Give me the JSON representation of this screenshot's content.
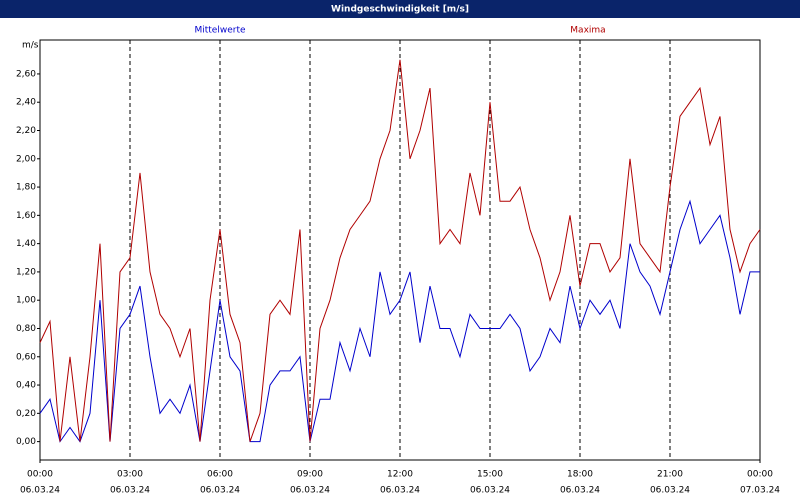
{
  "chart_data": {
    "type": "line",
    "title": "Windgeschwindigkeit [m/s]",
    "y_unit": "m/s",
    "x": [
      "06.03.24 00:00",
      "06.03.24 00:20",
      "06.03.24 00:40",
      "06.03.24 01:00",
      "06.03.24 01:20",
      "06.03.24 01:40",
      "06.03.24 02:00",
      "06.03.24 02:20",
      "06.03.24 02:40",
      "06.03.24 03:00",
      "06.03.24 03:20",
      "06.03.24 03:40",
      "06.03.24 04:00",
      "06.03.24 04:20",
      "06.03.24 04:40",
      "06.03.24 05:00",
      "06.03.24 05:20",
      "06.03.24 05:40",
      "06.03.24 06:00",
      "06.03.24 06:20",
      "06.03.24 06:40",
      "06.03.24 07:00",
      "06.03.24 07:20",
      "06.03.24 07:40",
      "06.03.24 08:00",
      "06.03.24 08:20",
      "06.03.24 08:40",
      "06.03.24 09:00",
      "06.03.24 09:20",
      "06.03.24 09:40",
      "06.03.24 10:00",
      "06.03.24 10:20",
      "06.03.24 10:40",
      "06.03.24 11:00",
      "06.03.24 11:20",
      "06.03.24 11:40",
      "06.03.24 12:00",
      "06.03.24 12:20",
      "06.03.24 12:40",
      "06.03.24 13:00",
      "06.03.24 13:20",
      "06.03.24 13:40",
      "06.03.24 14:00",
      "06.03.24 14:20",
      "06.03.24 14:40",
      "06.03.24 15:00",
      "06.03.24 15:20",
      "06.03.24 15:40",
      "06.03.24 16:00",
      "06.03.24 16:20",
      "06.03.24 16:40",
      "06.03.24 17:00",
      "06.03.24 17:20",
      "06.03.24 17:40",
      "06.03.24 18:00",
      "06.03.24 18:20",
      "06.03.24 18:40",
      "06.03.24 19:00",
      "06.03.24 19:20",
      "06.03.24 19:40",
      "06.03.24 20:00",
      "06.03.24 20:20",
      "06.03.24 20:40",
      "06.03.24 21:00",
      "06.03.24 21:20",
      "06.03.24 21:40",
      "06.03.24 22:00",
      "06.03.24 22:20",
      "06.03.24 22:40",
      "06.03.24 23:00",
      "06.03.24 23:20",
      "06.03.24 23:40",
      "07.03.24 00:00"
    ],
    "series": [
      {
        "name": "Mittelwerte",
        "color": "#0000cc",
        "values": [
          0.2,
          0.3,
          0.0,
          0.1,
          0.0,
          0.2,
          1.0,
          0.0,
          0.8,
          0.9,
          1.1,
          0.6,
          0.2,
          0.3,
          0.2,
          0.4,
          0.0,
          0.5,
          1.0,
          0.6,
          0.5,
          0.0,
          0.0,
          0.4,
          0.5,
          0.5,
          0.6,
          0.0,
          0.3,
          0.3,
          0.7,
          0.5,
          0.8,
          0.6,
          1.2,
          0.9,
          1.0,
          1.2,
          0.7,
          1.1,
          0.8,
          0.8,
          0.6,
          0.9,
          0.8,
          0.8,
          0.8,
          0.9,
          0.8,
          0.5,
          0.6,
          0.8,
          0.7,
          1.1,
          0.8,
          1.0,
          0.9,
          1.0,
          0.8,
          1.4,
          1.2,
          1.1,
          0.9,
          1.2,
          1.5,
          1.7,
          1.4,
          1.5,
          1.6,
          1.3,
          0.9,
          1.2,
          1.2
        ]
      },
      {
        "name": "Maxima",
        "color": "#b00000",
        "values": [
          0.7,
          0.85,
          0.0,
          0.6,
          0.0,
          0.6,
          1.4,
          0.0,
          1.2,
          1.3,
          1.9,
          1.2,
          0.9,
          0.8,
          0.6,
          0.8,
          0.0,
          1.0,
          1.5,
          0.9,
          0.7,
          0.0,
          0.2,
          0.9,
          1.0,
          0.9,
          1.5,
          0.0,
          0.8,
          1.0,
          1.3,
          1.5,
          1.6,
          1.7,
          2.0,
          2.2,
          2.7,
          2.0,
          2.2,
          2.5,
          1.4,
          1.5,
          1.4,
          1.9,
          1.6,
          2.4,
          1.7,
          1.7,
          1.8,
          1.5,
          1.3,
          1.0,
          1.2,
          1.6,
          1.1,
          1.4,
          1.4,
          1.2,
          1.3,
          2.0,
          1.4,
          1.3,
          1.2,
          1.8,
          2.3,
          2.4,
          2.5,
          2.1,
          2.3,
          1.5,
          1.2,
          1.4,
          1.5
        ]
      }
    ],
    "ylim": [
      -0.13,
      2.84
    ],
    "yticks": [
      {
        "value": 0,
        "label": "0,00"
      },
      {
        "value": 0.2,
        "label": "0,20"
      },
      {
        "value": 0.4,
        "label": "0,40"
      },
      {
        "value": 0.6,
        "label": "0,60"
      },
      {
        "value": 0.8,
        "label": "0,80"
      },
      {
        "value": 1,
        "label": "1,00"
      },
      {
        "value": 1.2,
        "label": "1,20"
      },
      {
        "value": 1.4,
        "label": "1,40"
      },
      {
        "value": 1.6,
        "label": "1,60"
      },
      {
        "value": 1.8,
        "label": "1,80"
      },
      {
        "value": 2,
        "label": "2,00"
      },
      {
        "value": 2.2,
        "label": "2,20"
      },
      {
        "value": 2.4,
        "label": "2,40"
      },
      {
        "value": 2.6,
        "label": "2,60"
      }
    ],
    "xticks": [
      {
        "value": "06.03.24 00:00",
        "label": [
          "00:00",
          "06.03.24"
        ]
      },
      {
        "value": "06.03.24 03:00",
        "label": [
          "03:00",
          "06.03.24"
        ]
      },
      {
        "value": "06.03.24 06:00",
        "label": [
          "06:00",
          "06.03.24"
        ]
      },
      {
        "value": "06.03.24 09:00",
        "label": [
          "09:00",
          "06.03.24"
        ]
      },
      {
        "value": "06.03.24 12:00",
        "label": [
          "12:00",
          "06.03.24"
        ]
      },
      {
        "value": "06.03.24 15:00",
        "label": [
          "15:00",
          "06.03.24"
        ]
      },
      {
        "value": "06.03.24 18:00",
        "label": [
          "18:00",
          "06.03.24"
        ]
      },
      {
        "value": "06.03.24 21:00",
        "label": [
          "21:00",
          "06.03.24"
        ]
      },
      {
        "value": "07.03.24 00:00",
        "label": [
          "00:00",
          "07.03.24"
        ]
      }
    ],
    "grid": true
  }
}
